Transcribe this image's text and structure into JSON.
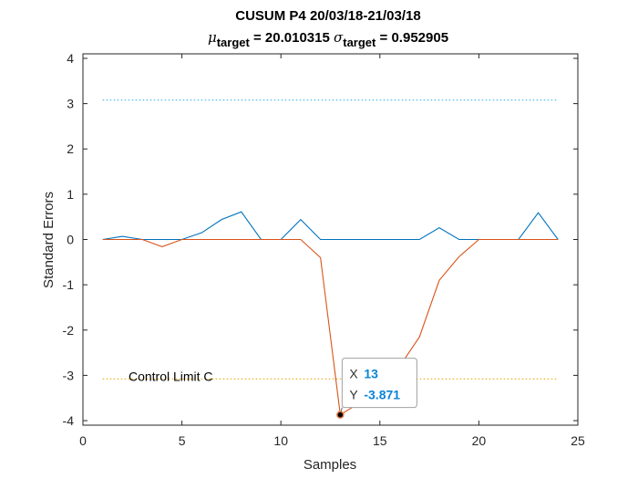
{
  "chart_data": {
    "type": "line",
    "title": "CUSUM P4 20/03/18-21/03/18",
    "subtitle": {
      "mu_symbol": "μ",
      "mu_sub": "target",
      "mu_value": " = 20.010315 ",
      "sigma_symbol": "σ",
      "sigma_sub": "target",
      "sigma_value": " = 0.952905"
    },
    "xlabel": "Samples",
    "ylabel": "Standard Errors",
    "xlim": [
      0,
      25
    ],
    "ylim": [
      -4.1,
      4.1
    ],
    "xticks": [
      0,
      5,
      10,
      15,
      20,
      25
    ],
    "yticks": [
      -4,
      -3,
      -2,
      -1,
      0,
      1,
      2,
      3,
      4
    ],
    "grid": false,
    "series": [
      {
        "color": "#0072BD",
        "x": [
          1,
          2,
          3,
          4,
          5,
          6,
          7,
          8,
          9,
          10,
          11,
          12,
          13,
          14,
          15,
          16,
          17,
          18,
          19,
          20,
          21,
          22,
          23,
          24
        ],
        "y": [
          0,
          0.07,
          0,
          0,
          0,
          0.15,
          0.44,
          0.61,
          0,
          0,
          0.44,
          0,
          0,
          0,
          0,
          0,
          0,
          0.26,
          0,
          0,
          0,
          0,
          0.59,
          0
        ]
      },
      {
        "color": "#D95319",
        "x": [
          1,
          2,
          3,
          4,
          5,
          6,
          7,
          8,
          9,
          10,
          11,
          12,
          13,
          14,
          15,
          16,
          17,
          18,
          19,
          20,
          21,
          22,
          23,
          24
        ],
        "y": [
          0,
          0,
          0,
          -0.16,
          0,
          0,
          0,
          0,
          0,
          0,
          0,
          -0.4,
          -3.871,
          -3.6,
          -3.1,
          -2.8,
          -2.15,
          -0.9,
          -0.38,
          0,
          0,
          0,
          0,
          0
        ]
      }
    ],
    "control_limits": [
      {
        "y": 3.08,
        "color": "#4DBEEE",
        "x_range": [
          1,
          24
        ]
      },
      {
        "y": -3.08,
        "color": "#EDB120",
        "x_range": [
          1,
          24
        ]
      }
    ],
    "annotations": [
      {
        "text": "Control Limit C",
        "x": 2.3,
        "y": -3.02
      }
    ],
    "datatip": {
      "x_key": "X",
      "x_value": "13",
      "y_key": "Y",
      "y_value": "-3.871",
      "point": {
        "x": 13,
        "y": -3.871
      }
    }
  }
}
